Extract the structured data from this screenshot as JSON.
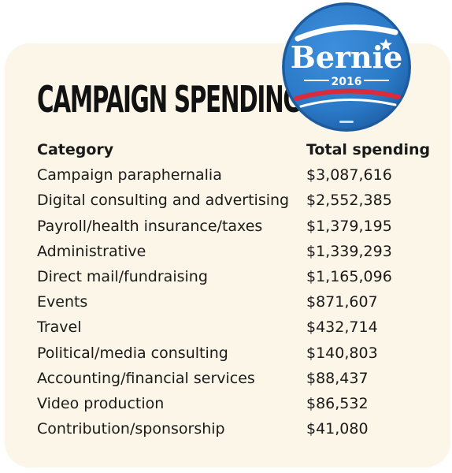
{
  "title": "CAMPAIGN SPENDING",
  "badge": {
    "name": "Bernie",
    "year": "2016",
    "colors": {
      "blue": "#2b79c7",
      "rim": "#1f5a9c",
      "white": "#ffffff",
      "red": "#d92b3a"
    }
  },
  "card_color": "#fbf6e8",
  "chart_data": {
    "type": "table",
    "title": "CAMPAIGN SPENDING",
    "columns": [
      "Category",
      "Total spending"
    ],
    "categories": [
      "Campaign paraphernalia",
      "Digital consulting and advertising",
      "Payroll/health insurance/taxes",
      "Administrative",
      "Direct mail/fundraising",
      "Events",
      "Travel",
      "Political/media consulting",
      "Accounting/financial services",
      "Video production",
      "Contribution/sponsorship"
    ],
    "values": [
      3087616,
      2552385,
      1379195,
      1339293,
      1165096,
      871607,
      432714,
      140803,
      88437,
      86532,
      41080
    ],
    "value_labels": [
      "$3,087,616",
      "$2,552,385",
      "$1,379,195",
      "$1,339,293",
      "$1,165,096",
      "$871,607",
      "$432,714",
      "$140,803",
      "$88,437",
      "$86,532",
      "$41,080"
    ]
  }
}
